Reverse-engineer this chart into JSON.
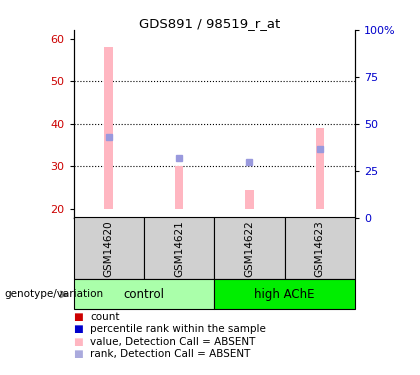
{
  "title": "GDS891 / 98519_r_at",
  "samples": [
    "GSM14620",
    "GSM14621",
    "GSM14622",
    "GSM14623"
  ],
  "bar_bottoms": [
    20,
    20,
    20,
    20
  ],
  "bar_tops": [
    58,
    30,
    24.5,
    39
  ],
  "rank_values": [
    37,
    32,
    31,
    34
  ],
  "ylim_left": [
    18,
    62
  ],
  "ylim_right": [
    0,
    100
  ],
  "yticks_left": [
    20,
    30,
    40,
    50,
    60
  ],
  "yticks_right": [
    0,
    25,
    50,
    75,
    100
  ],
  "ytick_right_labels": [
    "0",
    "25",
    "50",
    "75",
    "100%"
  ],
  "bar_color": "#FFB6C1",
  "rank_color": "#9999DD",
  "bar_width": 0.12,
  "dotted_lines": [
    30,
    40,
    50
  ],
  "ctrl_color": "#AAFFAA",
  "ache_color": "#00EE00",
  "gray_box_color": "#D0D0D0",
  "legend_items": [
    {
      "label": "count",
      "color": "#CC0000"
    },
    {
      "label": "percentile rank within the sample",
      "color": "#0000CC"
    },
    {
      "label": "value, Detection Call = ABSENT",
      "color": "#FFB6C1"
    },
    {
      "label": "rank, Detection Call = ABSENT",
      "color": "#AAAADD"
    }
  ],
  "left_tick_color": "#CC0000",
  "right_tick_color": "#0000CC",
  "genotype_label": "genotype/variation",
  "ctrl_label": "control",
  "ache_label": "high AChE"
}
